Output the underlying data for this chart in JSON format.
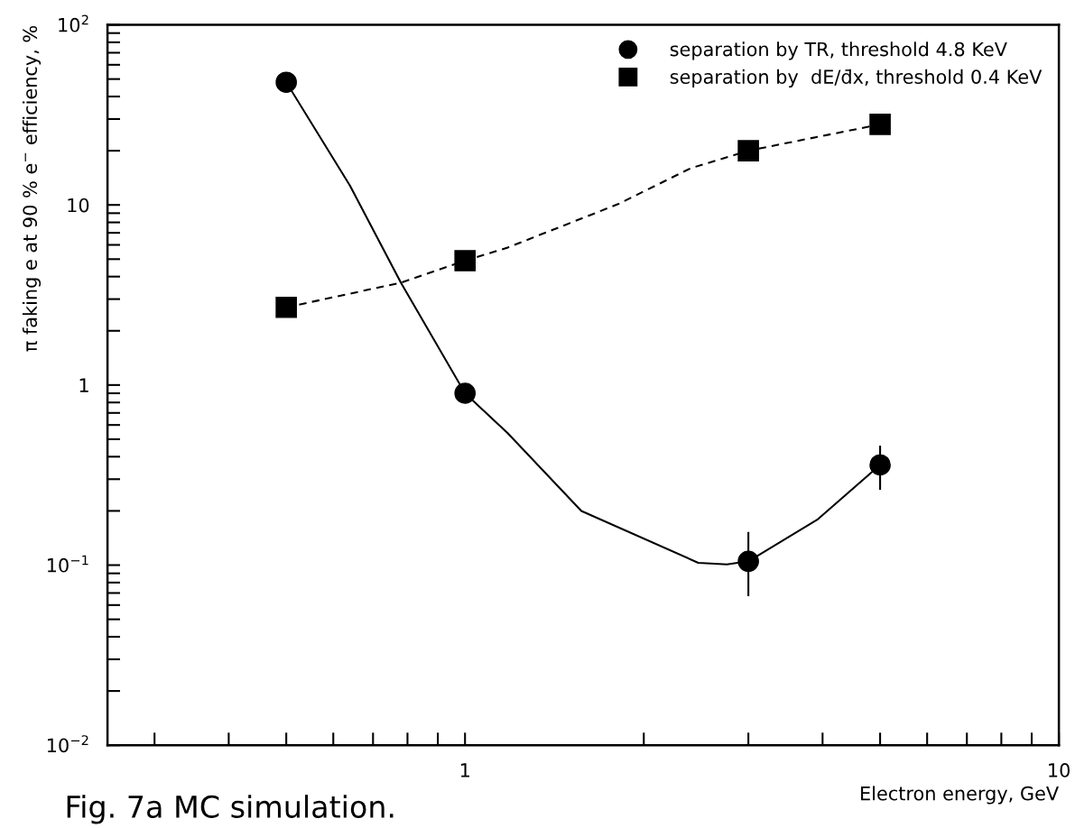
{
  "chart_data": {
    "type": "scatter",
    "xlabel": "Electron energy, GeV",
    "ylabel": "π faking e at 90 % e$^{−}$ efficiency, %",
    "log": "xy",
    "grid": false,
    "legend": "top right",
    "xlim": [
      0.25,
      10
    ],
    "ylim": [
      0.01,
      100
    ],
    "xticks": [
      {
        "value": 0.3,
        "label": null
      },
      {
        "value": 0.4,
        "label": null
      },
      {
        "value": 0.5,
        "label": null
      },
      {
        "value": 0.6,
        "label": null
      },
      {
        "value": 0.7,
        "label": null
      },
      {
        "value": 0.8,
        "label": null
      },
      {
        "value": 0.9,
        "label": null
      },
      1,
      {
        "value": 2,
        "label": null
      },
      {
        "value": 3,
        "label": null
      },
      {
        "value": 4,
        "label": null
      },
      {
        "value": 5,
        "label": null
      },
      {
        "value": 6,
        "label": null
      },
      {
        "value": 7,
        "label": null
      },
      {
        "value": 8,
        "label": null
      },
      {
        "value": 9,
        "label": null
      },
      10
    ],
    "yticks": [
      {
        "value": 0.01,
        "label": "10$^{−2}$"
      },
      {
        "value": 0.02,
        "label": null
      },
      {
        "value": 0.03,
        "label": null
      },
      {
        "value": 0.04,
        "label": null
      },
      {
        "value": 0.05,
        "label": null
      },
      {
        "value": 0.06,
        "label": null
      },
      {
        "value": 0.07,
        "label": null
      },
      {
        "value": 0.08,
        "label": null
      },
      {
        "value": 0.09,
        "label": null
      },
      {
        "value": 0.1,
        "label": "10$^{−1}$"
      },
      {
        "value": 0.2,
        "label": null
      },
      {
        "value": 0.3,
        "label": null
      },
      {
        "value": 0.4,
        "label": null
      },
      {
        "value": 0.5,
        "label": null
      },
      {
        "value": 0.6,
        "label": null
      },
      {
        "value": 0.7,
        "label": null
      },
      {
        "value": 0.8,
        "label": null
      },
      {
        "value": 0.9,
        "label": null
      },
      1,
      {
        "value": 2,
        "label": null
      },
      {
        "value": 3,
        "label": null
      },
      {
        "value": 4,
        "label": null
      },
      {
        "value": 5,
        "label": null
      },
      {
        "value": 6,
        "label": null
      },
      {
        "value": 7,
        "label": null
      },
      {
        "value": 8,
        "label": null
      },
      {
        "value": 9,
        "label": null
      },
      10,
      {
        "value": 20,
        "label": null
      },
      {
        "value": 30,
        "label": null
      },
      {
        "value": 40,
        "label": null
      },
      {
        "value": 50,
        "label": null
      },
      {
        "value": 60,
        "label": null
      },
      {
        "value": 70,
        "label": null
      },
      {
        "value": 80,
        "label": null
      },
      {
        "value": 90,
        "label": null
      },
      {
        "value": 100,
        "label": "10$^{2}$"
      }
    ],
    "series": [
      {
        "name": "separation by TR, threshold 4.8 KeV",
        "color": "#000000",
        "marker": "circle",
        "x": [
          0.5,
          1,
          3,
          5
        ],
        "values": [
          48,
          0.9,
          0.105,
          0.36
        ],
        "errors": [
          null,
          null,
          [
            0.068,
            0.151
          ],
          [
            0.265,
            0.455
          ]
        ]
      },
      {
        "name": "separation by  dE/d̄x, threshold 0.4 KeV",
        "color": "#000000",
        "marker": "square",
        "x": [
          0.5,
          1,
          3,
          5
        ],
        "values": [
          2.7,
          4.9,
          20,
          28
        ]
      },
      {
        "type": "line",
        "color": "#000000",
        "marker": "none",
        "line_style": "solid",
        "x": [
          0.5,
          0.64,
          0.78,
          1,
          1.18,
          1.57,
          2.47,
          2.76,
          3,
          3.93,
          5
        ],
        "values": [
          48,
          12.8,
          3.7,
          0.9,
          0.54,
          0.2,
          0.103,
          0.101,
          0.105,
          0.18,
          0.36
        ]
      },
      {
        "type": "line",
        "color": "#000000",
        "marker": "none",
        "line_style": "dashed",
        "x": [
          0.5,
          0.78,
          1,
          1.18,
          1.81,
          2.4,
          3,
          5
        ],
        "values": [
          2.7,
          3.7,
          4.9,
          5.8,
          10.1,
          16,
          20,
          28
        ]
      }
    ],
    "annotations": [
      "Fig. 7a MC simulation."
    ]
  }
}
